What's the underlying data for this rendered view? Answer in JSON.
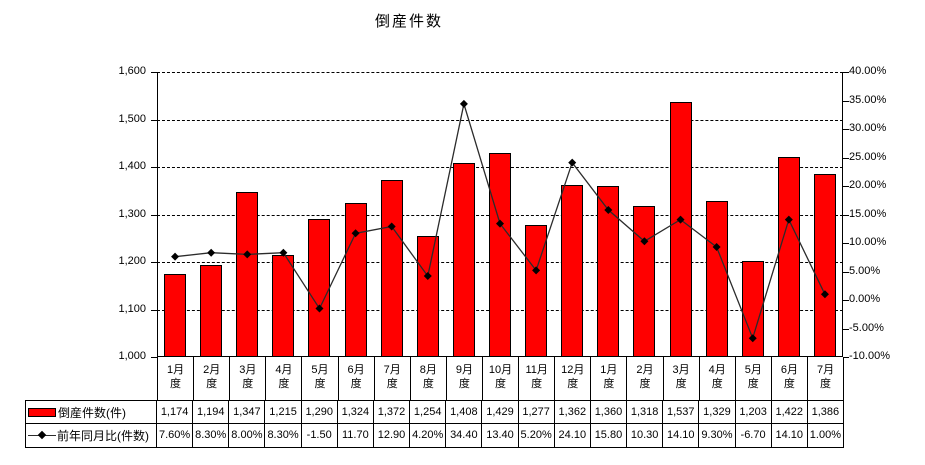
{
  "chart_data": {
    "type": "bar",
    "title": "倒産件数",
    "categories": [
      "1月度",
      "2月度",
      "3月度",
      "4月度",
      "5月度",
      "6月度",
      "7月度",
      "8月度",
      "9月度",
      "10月度",
      "11月度",
      "12月度",
      "1月度",
      "2月度",
      "3月度",
      "4月度",
      "5月度",
      "6月度",
      "7月度"
    ],
    "series": [
      {
        "name": "倒産件数(件)",
        "type": "bar",
        "axis": "left",
        "color": "#ff0000",
        "values": [
          1174,
          1194,
          1347,
          1215,
          1290,
          1324,
          1372,
          1254,
          1408,
          1429,
          1277,
          1362,
          1360,
          1318,
          1537,
          1329,
          1203,
          1422,
          1386
        ],
        "display": [
          "1,174",
          "1,194",
          "1,347",
          "1,215",
          "1,290",
          "1,324",
          "1,372",
          "1,254",
          "1,408",
          "1,429",
          "1,277",
          "1,362",
          "1,360",
          "1,318",
          "1,537",
          "1,329",
          "1,203",
          "1,422",
          "1,386"
        ]
      },
      {
        "name": "前年同月比(件数)",
        "type": "line",
        "axis": "right",
        "color": "#2b2b2b",
        "marker": "diamond",
        "values": [
          7.6,
          8.3,
          8.0,
          8.3,
          -1.5,
          11.7,
          12.9,
          4.2,
          34.4,
          13.4,
          5.2,
          24.1,
          15.8,
          10.3,
          14.1,
          9.3,
          -6.7,
          14.1,
          1.0
        ],
        "display": [
          "7.60%",
          "8.30%",
          "8.00%",
          "8.30%",
          "-1.50",
          "11.70",
          "12.90",
          "4.20%",
          "34.40",
          "13.40",
          "5.20%",
          "24.10",
          "15.80",
          "10.30",
          "14.10",
          "9.30%",
          "-6.70",
          "14.10",
          "1.00%"
        ]
      }
    ],
    "left_axis": {
      "min": 1000,
      "max": 1600,
      "step": 100,
      "tick_labels": [
        "1,600",
        "1,500",
        "1,400",
        "1,300",
        "1,200",
        "1,100",
        "1,000"
      ]
    },
    "right_axis": {
      "min": -10,
      "max": 40,
      "step": 5,
      "tick_labels": [
        "40.00%",
        "35.00%",
        "30.00%",
        "25.00%",
        "20.00%",
        "15.00%",
        "10.00%",
        "5.00%",
        "0.00%",
        "-5.00%",
        "-10.00%"
      ]
    },
    "grid": "horizontal-dashed",
    "legend_position": "data-table-left",
    "background": "#ffffff"
  }
}
